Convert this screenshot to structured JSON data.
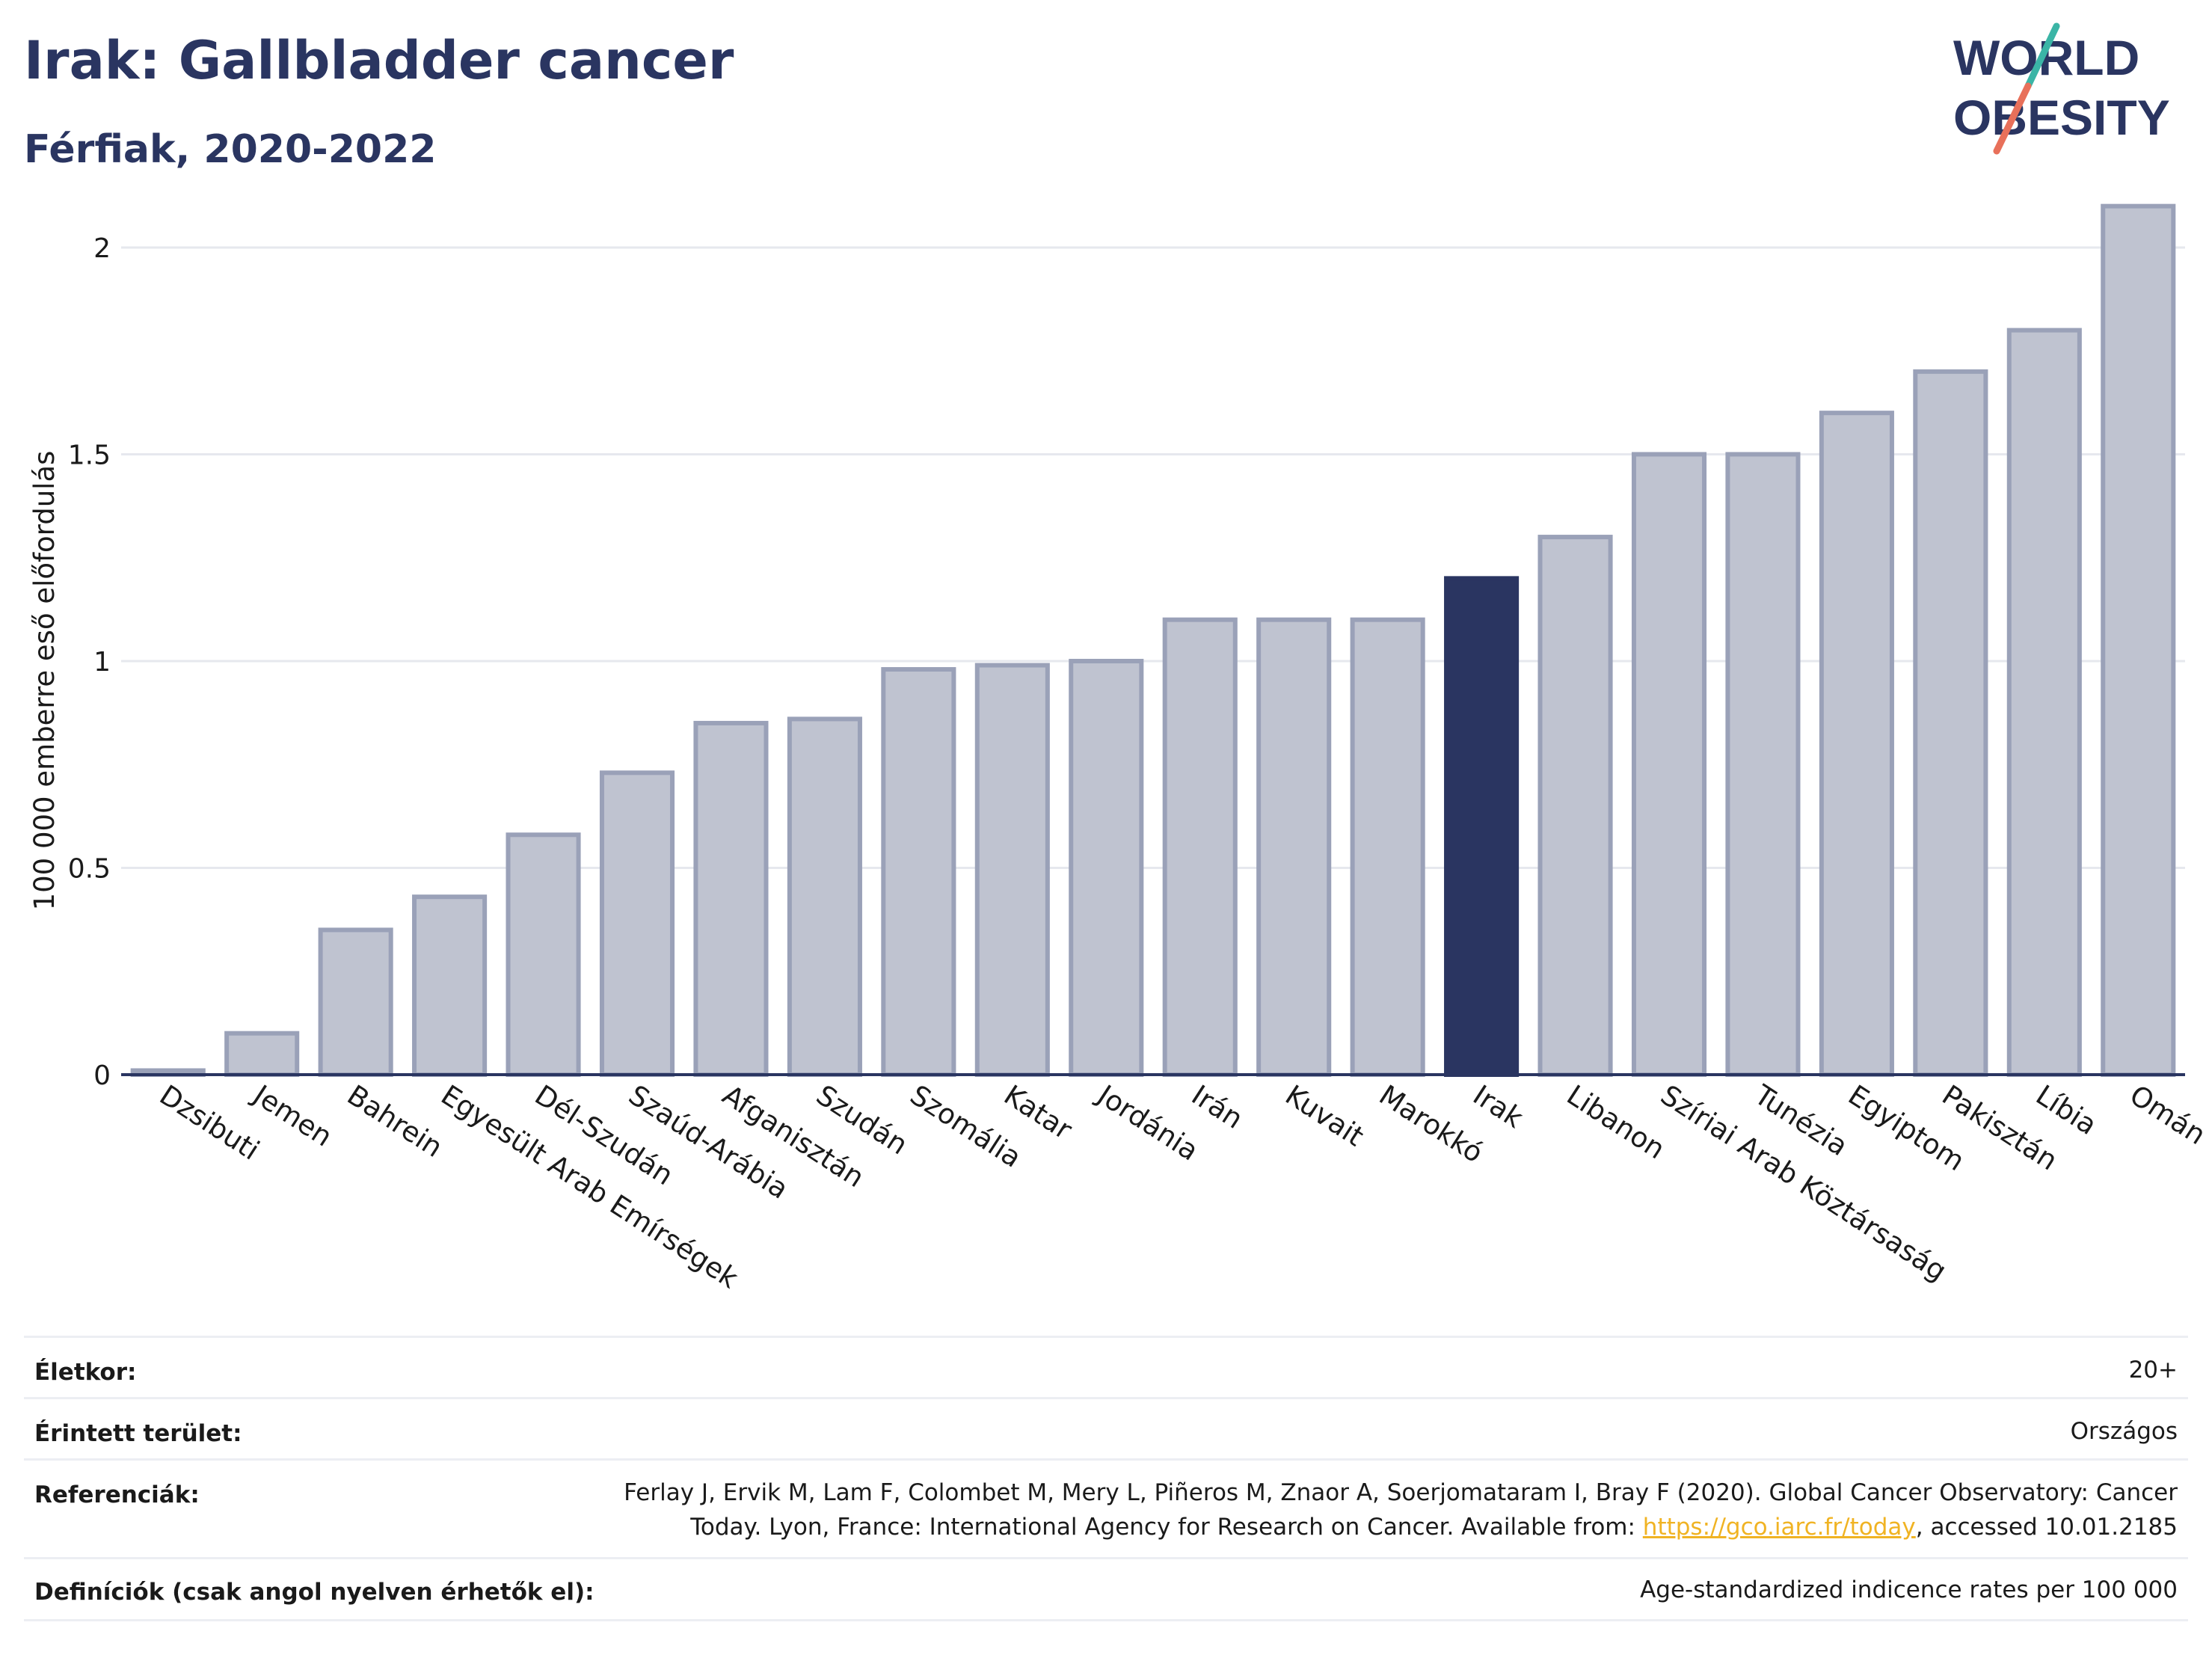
{
  "header": {
    "title": "Irak: Gallbladder cancer",
    "subtitle": "Férfiak, 2020-2022"
  },
  "logo": {
    "line1": "WORLD",
    "line2": "OBESITY"
  },
  "chart_data": {
    "type": "bar",
    "ylabel": "100 000 emberre eső előfordulás",
    "xlabel": "",
    "ylim": [
      0,
      2.15
    ],
    "yticks": [
      0,
      0.5,
      1,
      1.5,
      2
    ],
    "ytick_labels": [
      "0",
      "0.5",
      "1",
      "1.5",
      "2"
    ],
    "grid": true,
    "categories": [
      "Dzsibuti",
      "Jemen",
      "Bahrein",
      "Egyesült Arab Emírségek",
      "Dél-Szudán",
      "Szaúd-Arábia",
      "Afganisztán",
      "Szudán",
      "Szomália",
      "Katar",
      "Jordánia",
      "Irán",
      "Kuvait",
      "Marokkó",
      "Irak",
      "Libanon",
      "Szíriai Arab Köztársaság",
      "Tunézia",
      "Egyiptom",
      "Pakisztán",
      "Líbia",
      "Omán"
    ],
    "values": [
      0.01,
      0.1,
      0.35,
      0.43,
      0.58,
      0.73,
      0.85,
      0.86,
      0.98,
      0.99,
      1.0,
      1.1,
      1.1,
      1.1,
      1.2,
      1.3,
      1.5,
      1.5,
      1.6,
      1.7,
      1.8,
      2.1
    ],
    "highlight": "Irak",
    "colors": {
      "bar": "#bfc3d0",
      "bar_edge": "#9aa1b8",
      "highlight": "#2a3561",
      "grid": "#e6e8ee",
      "axis": "#2a3561"
    }
  },
  "info": {
    "rows": [
      {
        "label": "Életkor:",
        "value": "20+"
      },
      {
        "label": "Érintett terület:",
        "value": "Országos"
      },
      {
        "label": "Referenciák:",
        "value_line1": "Ferlay J, Ervik M, Lam F, Colombet M, Mery L, Piñeros M, Znaor A, Soerjomataram I, Bray F (2020). Global Cancer Observatory: Cancer",
        "value_line2_pre": "Today. Lyon, France: International Agency for Research on Cancer. Available from: ",
        "link": "https://gco.iarc.fr/today",
        "value_line2_post": ", accessed 10.01.2185"
      },
      {
        "label": "Definíciók (csak angol nyelven érhetők el):",
        "value": "Age-standardized indicence rates per 100 000"
      }
    ]
  }
}
